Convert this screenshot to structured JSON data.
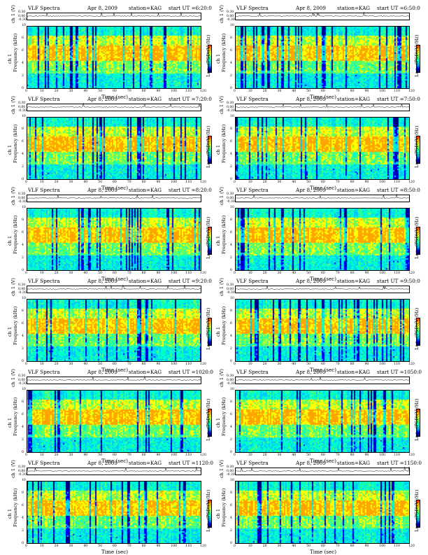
{
  "chart_data": {
    "type": "heatmap",
    "common": {
      "title": "VLF Spectra",
      "date": "Apr 8, 2009",
      "station": "station=KAG",
      "xlabel": "Time (sec)",
      "ylabel_top": "ch 1 (V)",
      "ylabel_spec_upper": "Frequency (kHz)",
      "ylabel_spec_lower": "ch 1",
      "colorbar_label": "Log₁₀(PSD)(V²/Hz)",
      "x_ticks": [
        "0",
        "10",
        "20",
        "30",
        "40",
        "50",
        "60",
        "70",
        "80",
        "90",
        "100",
        "110",
        "120"
      ],
      "xlim": [
        0,
        120
      ],
      "freq_ticks": [
        "0",
        "2",
        "4",
        "6",
        "8",
        "10"
      ],
      "ylim_freq": [
        0,
        10
      ],
      "volt_ticks": [
        "0.30",
        "0.00",
        "-0.30"
      ],
      "colorscale": [
        "#000080",
        "#0000ff",
        "#00c8ff",
        "#00ffc8",
        "#64ff64",
        "#ffff00",
        "#ffa500",
        "#ff0000"
      ]
    },
    "panels": [
      {
        "start": "start UT =6:20:0"
      },
      {
        "start": "start UT =6:50:0"
      },
      {
        "start": "start UT =7:20:0"
      },
      {
        "start": "start UT =7:50:0"
      },
      {
        "start": "start UT =8:20:0"
      },
      {
        "start": "start UT =8:50:0"
      },
      {
        "start": "start UT =9:20:0"
      },
      {
        "start": "start UT =9:50:0"
      },
      {
        "start": "start UT =1020:0"
      },
      {
        "start": "start UT =1050:0"
      },
      {
        "start": "start UT =1120:0"
      },
      {
        "start": "start UT =1150:0"
      }
    ]
  }
}
